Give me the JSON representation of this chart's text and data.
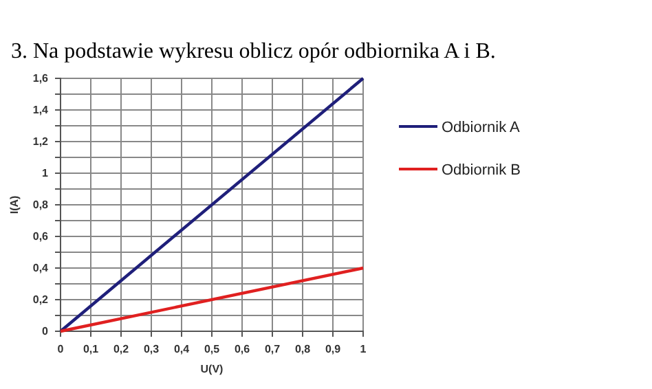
{
  "chart_data": {
    "type": "line",
    "title": "3. Na podstawie wykresu oblicz opór odbiornika A i B.",
    "xlabel": "U(V)",
    "ylabel": "I(A)",
    "x": [
      0,
      1
    ],
    "series": [
      {
        "name": "Odbiornik A",
        "color": "#1f1f7a",
        "values": [
          0,
          1.6
        ]
      },
      {
        "name": "Odbiornik B",
        "color": "#e02020",
        "values": [
          0,
          0.4
        ]
      }
    ],
    "xlim": [
      0,
      1
    ],
    "ylim": [
      0,
      1.6
    ],
    "xticks": [
      0,
      {
        "value": 0.1,
        "label": "0,1"
      },
      {
        "value": 0.2,
        "label": "0,2"
      },
      {
        "value": 0.3,
        "label": "0,3"
      },
      {
        "value": 0.4,
        "label": "0,4"
      },
      {
        "value": 0.5,
        "label": "0,5"
      },
      {
        "value": 0.6,
        "label": "0,6"
      },
      {
        "value": 0.7,
        "label": "0,7"
      },
      {
        "value": 0.8,
        "label": "0,8"
      },
      {
        "value": 0.9,
        "label": "0,9"
      },
      1
    ],
    "yticks": [
      0,
      {
        "value": 0.1,
        "label": null
      },
      {
        "value": 0.2,
        "label": "0,2"
      },
      {
        "value": 0.3,
        "label": null
      },
      {
        "value": 0.4,
        "label": "0,4"
      },
      {
        "value": 0.5,
        "label": null
      },
      {
        "value": 0.6,
        "label": "0,6"
      },
      {
        "value": 0.7,
        "label": null
      },
      {
        "value": 0.8,
        "label": "0,8"
      },
      {
        "value": 0.9,
        "label": null
      },
      1,
      {
        "value": 1.1,
        "label": null
      },
      {
        "value": 1.2,
        "label": "1,2"
      },
      {
        "value": 1.3,
        "label": null
      },
      {
        "value": 1.4,
        "label": "1,4"
      },
      {
        "value": 1.5,
        "label": null
      },
      {
        "value": 1.6,
        "label": "1,6"
      }
    ],
    "grid": true,
    "legend": "right",
    "marker": "none",
    "line_style": "solid"
  }
}
